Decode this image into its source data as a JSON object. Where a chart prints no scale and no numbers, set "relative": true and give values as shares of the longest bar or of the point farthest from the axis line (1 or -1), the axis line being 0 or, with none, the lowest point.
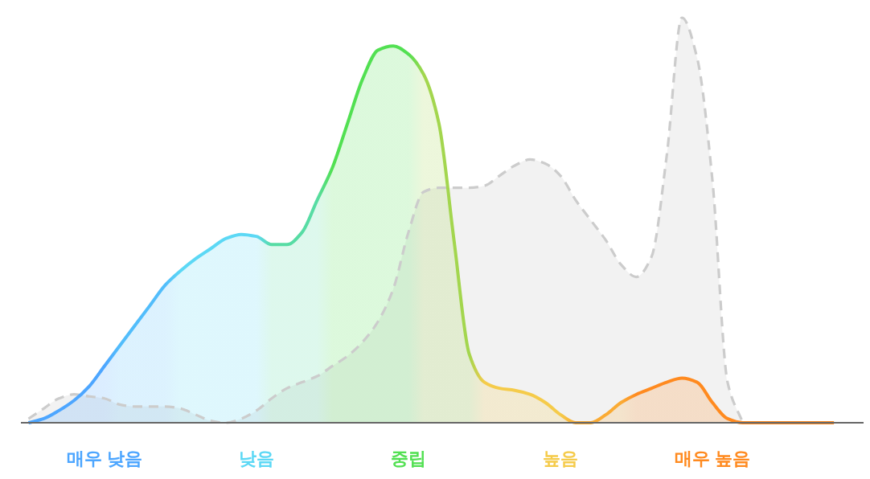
{
  "chart_data": {
    "type": "area",
    "relative": true,
    "legend": false,
    "grid": false,
    "categories": [
      null,
      null,
      null,
      null,
      null,
      "매우 낮음",
      null,
      null,
      null,
      null,
      null,
      null,
      null,
      null,
      null,
      "낮음",
      null,
      null,
      null,
      null,
      null,
      null,
      null,
      null,
      null,
      "중립",
      null,
      null,
      null,
      null,
      null,
      null,
      null,
      null,
      null,
      "높음",
      null,
      null,
      null,
      null,
      null,
      null,
      null,
      null,
      null,
      "매우 높음",
      null,
      null,
      null,
      null,
      null,
      null,
      null,
      null
    ],
    "series": [
      {
        "color": "#cccccc",
        "line_style": "dashed",
        "values": [
          0.01,
          0.035,
          0.06,
          0.07,
          0.065,
          0.06,
          0.045,
          0.04,
          0.04,
          0.04,
          0.035,
          0.02,
          0.005,
          0,
          0.01,
          0.03,
          0.06,
          0.085,
          0.1,
          0.115,
          0.14,
          0.165,
          0.2,
          0.25,
          0.33,
          0.47,
          0.57,
          0.58,
          0.58,
          0.58,
          0.585,
          0.61,
          0.635,
          0.65,
          0.64,
          0.61,
          0.55,
          0.5,
          0.45,
          0.39,
          0.36,
          0.41,
          0.66,
          1.0,
          0.9,
          0.6,
          0.1,
          0,
          null,
          null,
          null,
          null,
          null,
          null
        ]
      },
      {
        "line_style": "solid",
        "colors": [
          "#4da6ff",
          "#4da6ff",
          "#4da6ff",
          "#4da6ff",
          "#4da6ff",
          "#4da6ff",
          "#52bdfb",
          "#52bdfb",
          "#52bdfb",
          "#52bdfb",
          "#5cd8f5",
          "#5cd8f5",
          "#5cd8f5",
          "#5cd8f5",
          "#5cd8f5",
          "#5cd8f5",
          "#57dca4",
          "#57dca4",
          "#57dca4",
          "#57dca4",
          "#52e052",
          "#52e052",
          "#52e052",
          "#52e052",
          "#52e052",
          "#52e052",
          "#a3d64e",
          "#a3d64e",
          "#a3d64e",
          "#a3d64e",
          "#f5cb4a",
          "#f5cb4a",
          "#f5cb4a",
          "#f5cb4a",
          "#f5cb4a",
          "#f5cb4a",
          "#faab34",
          "#faab34",
          "#faab34",
          "#faab34",
          "#ff8a1f",
          "#ff8a1f",
          "#ff8a1f",
          "#ff8a1f",
          "#ff8a1f",
          "#ff8a1f",
          "#ff8a1f",
          "#ff8a1f",
          "#ff8a1f",
          "#ff8a1f",
          "#ff8a1f",
          "#ff8a1f",
          "#ff8a1f",
          "#ff8a1f"
        ],
        "values": [
          0,
          0.01,
          0.03,
          0.055,
          0.09,
          0.14,
          0.19,
          0.24,
          0.29,
          0.34,
          0.375,
          0.405,
          0.43,
          0.455,
          0.465,
          0.46,
          0.44,
          0.44,
          0.47,
          0.55,
          0.63,
          0.74,
          0.85,
          0.92,
          0.93,
          0.91,
          0.86,
          0.74,
          0.45,
          0.17,
          0.1,
          0.085,
          0.08,
          0.07,
          0.05,
          0.02,
          0,
          0,
          0.02,
          0.05,
          0.07,
          0.085,
          0.1,
          0.11,
          0.1,
          0.05,
          0.01,
          0,
          0,
          0,
          0,
          0,
          0,
          0
        ]
      }
    ]
  }
}
